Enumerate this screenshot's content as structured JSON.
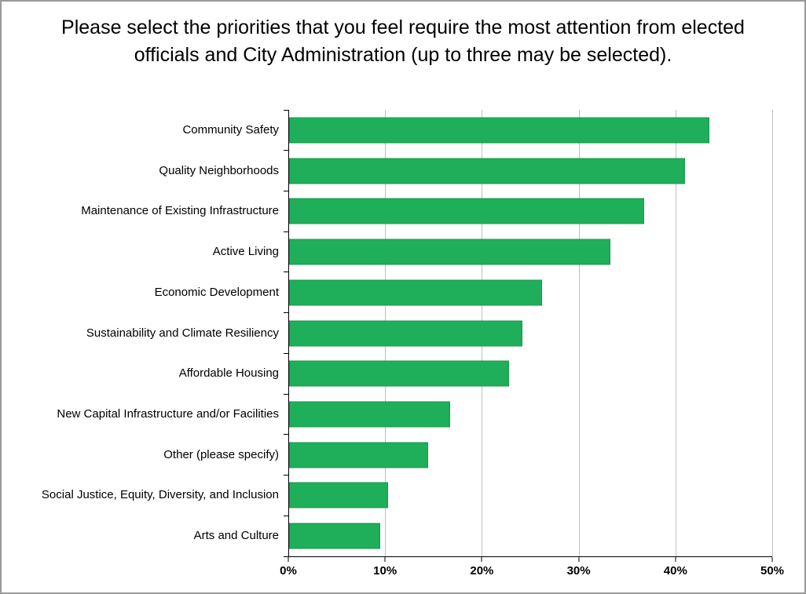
{
  "chart_data": {
    "type": "bar",
    "orientation": "horizontal",
    "title": "Please select the priorities that you feel require the most attention from elected officials and City Administration (up to three may be selected).",
    "categories": [
      "Community Safety",
      "Quality Neighborhoods",
      "Maintenance of Existing Infrastructure",
      "Active Living",
      "Economic Development",
      "Sustainability and Climate Resiliency",
      "Affordable Housing",
      "New Capital Infrastructure and/or Facilities",
      "Other (please specify)",
      "Social Justice, Equity, Diversity, and Inclusion",
      "Arts and Culture"
    ],
    "values": [
      43.4,
      40.9,
      36.7,
      33.2,
      26.1,
      24.1,
      22.7,
      16.6,
      14.4,
      10.2,
      9.4
    ],
    "xlim": [
      0,
      50
    ],
    "x_ticks": [
      "0%",
      "10%",
      "20%",
      "30%",
      "40%",
      "50%"
    ],
    "x_tick_values": [
      0,
      10,
      20,
      30,
      40,
      50
    ],
    "bar_color": "#1fae5a",
    "bar_border_color": "#18984d",
    "gridline_color": "#bfbfbf",
    "grid": true,
    "legend": "none",
    "ylabel": "",
    "xlabel": ""
  }
}
